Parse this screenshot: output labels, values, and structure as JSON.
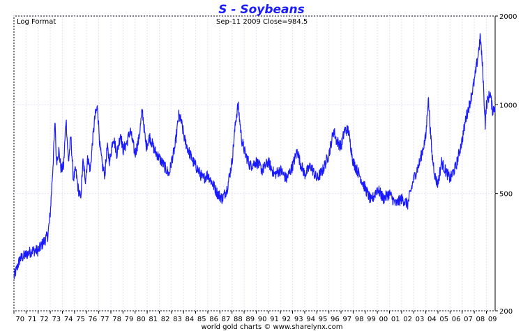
{
  "chart_data": {
    "type": "line",
    "title": "S  -  Soybeans",
    "subtitle": "Log Format",
    "info": "Sep-11  2009   Close=984.5",
    "footer": "world gold charts © www.sharelynx.com",
    "scale": "log",
    "ylim": [
      200,
      2000
    ],
    "yticks": [
      {
        "value": 2000,
        "label": "2000"
      },
      {
        "value": 1000,
        "label": "1000"
      },
      {
        "value": 500,
        "label": "500"
      },
      {
        "value": 200,
        "label": "200"
      }
    ],
    "xlim": [
      1970,
      2009.72
    ],
    "xticks": [
      "70",
      "71",
      "72",
      "73",
      "74",
      "75",
      "76",
      "77",
      "78",
      "79",
      "80",
      "81",
      "82",
      "83",
      "84",
      "85",
      "86",
      "87",
      "88",
      "89",
      "90",
      "91",
      "92",
      "93",
      "94",
      "95",
      "96",
      "97",
      "98",
      "99",
      "00",
      "01",
      "02",
      "03",
      "04",
      "05",
      "06",
      "07",
      "08",
      "09"
    ],
    "grid": true,
    "color": "#1a1aff",
    "series": [
      {
        "x": [
          1970.0,
          1970.5,
          1971.0,
          1971.5,
          1972.0,
          1972.4,
          1972.8,
          1973.0,
          1973.2,
          1973.4,
          1973.5,
          1973.7,
          1973.9,
          1974.1,
          1974.3,
          1974.5,
          1974.7,
          1974.9,
          1975.1,
          1975.3,
          1975.5,
          1975.7,
          1975.9,
          1976.1,
          1976.3,
          1976.5,
          1976.7,
          1976.9,
          1977.1,
          1977.3,
          1977.5,
          1977.7,
          1977.9,
          1978.2,
          1978.5,
          1978.8,
          1979.0,
          1979.3,
          1979.6,
          1980.0,
          1980.3,
          1980.6,
          1980.9,
          1981.2,
          1981.6,
          1982.0,
          1982.4,
          1982.8,
          1983.0,
          1983.3,
          1983.6,
          1983.8,
          1984.1,
          1984.4,
          1984.8,
          1985.2,
          1985.6,
          1986.0,
          1986.4,
          1986.8,
          1987.2,
          1987.6,
          1988.0,
          1988.3,
          1988.5,
          1988.8,
          1989.1,
          1989.5,
          1990.0,
          1990.5,
          1991.0,
          1991.5,
          1992.0,
          1992.5,
          1993.0,
          1993.4,
          1993.6,
          1994.0,
          1994.5,
          1995.0,
          1995.5,
          1996.0,
          1996.4,
          1996.6,
          1997.0,
          1997.3,
          1997.6,
          1998.0,
          1998.5,
          1999.0,
          1999.5,
          2000.0,
          2000.5,
          2001.0,
          2001.5,
          2002.0,
          2002.5,
          2003.0,
          2003.5,
          2004.0,
          2004.2,
          2004.5,
          2004.8,
          2005.0,
          2005.3,
          2005.6,
          2006.0,
          2006.5,
          2007.0,
          2007.3,
          2007.6,
          2008.0,
          2008.3,
          2008.5,
          2008.7,
          2008.9,
          2009.0,
          2009.3,
          2009.5,
          2009.72
        ],
        "y": [
          260,
          300,
          310,
          320,
          320,
          340,
          360,
          430,
          600,
          880,
          640,
          700,
          600,
          620,
          900,
          640,
          780,
          560,
          600,
          520,
          480,
          640,
          560,
          660,
          600,
          760,
          920,
          980,
          720,
          620,
          580,
          720,
          640,
          780,
          680,
          800,
          700,
          740,
          820,
          680,
          760,
          960,
          720,
          780,
          700,
          660,
          620,
          580,
          640,
          720,
          920,
          880,
          760,
          700,
          640,
          600,
          560,
          580,
          540,
          500,
          480,
          520,
          640,
          880,
          1000,
          760,
          680,
          620,
          640,
          600,
          640,
          580,
          600,
          560,
          620,
          700,
          640,
          580,
          620,
          560,
          600,
          680,
          820,
          760,
          720,
          820,
          820,
          640,
          580,
          520,
          470,
          520,
          480,
          500,
          460,
          480,
          460,
          560,
          640,
          780,
          1060,
          680,
          560,
          540,
          640,
          600,
          560,
          620,
          760,
          900,
          1000,
          1200,
          1460,
          1700,
          1300,
          860,
          1000,
          1100,
          960,
          984.5
        ]
      }
    ]
  }
}
